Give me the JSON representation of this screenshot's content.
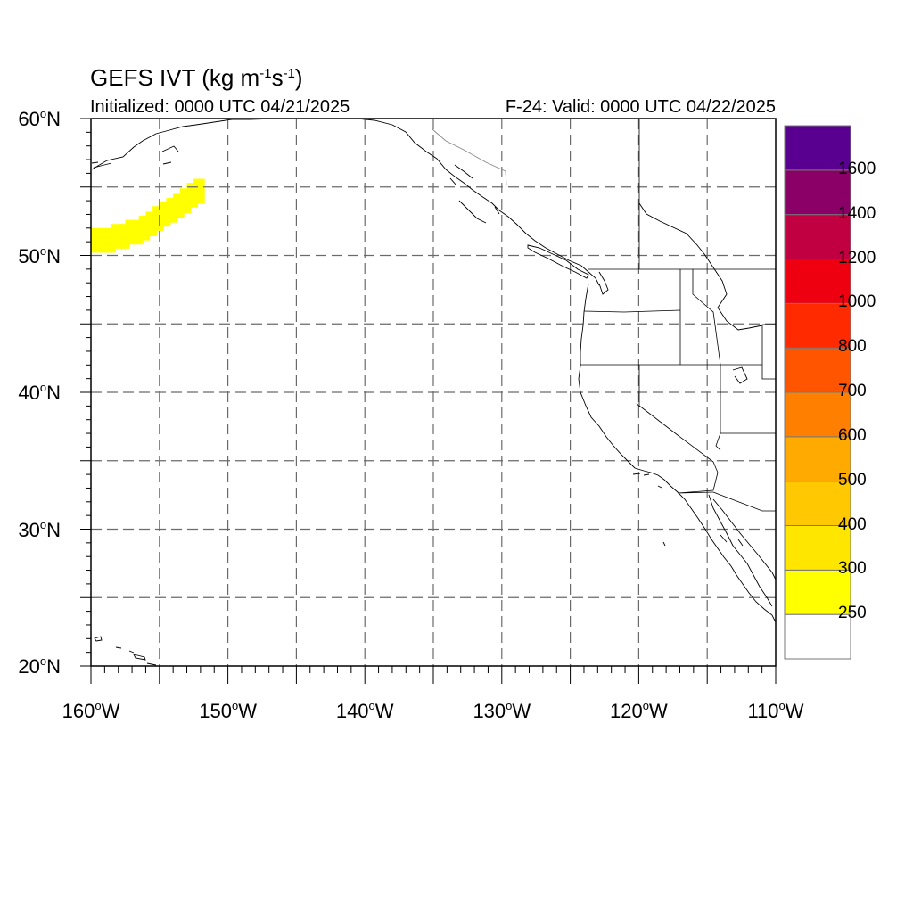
{
  "title": {
    "main": "GEFS IVT (kg m",
    "sup1": "-1",
    "mid": "s",
    "sup2": "-1",
    "end": ")"
  },
  "subtitle_left": "Initialized: 0000 UTC 04/21/2025",
  "subtitle_right": "F-24: Valid: 0000 UTC 04/22/2025",
  "lat_labels": [
    {
      "num": "60",
      "hem": "N"
    },
    {
      "num": "50",
      "hem": "N"
    },
    {
      "num": "40",
      "hem": "N"
    },
    {
      "num": "30",
      "hem": "N"
    },
    {
      "num": "20",
      "hem": "N"
    }
  ],
  "lon_labels": [
    {
      "num": "160",
      "hem": "W"
    },
    {
      "num": "150",
      "hem": "W"
    },
    {
      "num": "140",
      "hem": "W"
    },
    {
      "num": "130",
      "hem": "W"
    },
    {
      "num": "120",
      "hem": "W"
    },
    {
      "num": "110",
      "hem": "W"
    }
  ],
  "colorbar": {
    "labels": [
      "250",
      "300",
      "400",
      "500",
      "600",
      "700",
      "800",
      "1000",
      "1200",
      "1400",
      "1600"
    ],
    "colors": [
      "#ffffff",
      "#ffff00",
      "#ffe600",
      "#ffc800",
      "#ffaa00",
      "#ff8000",
      "#ff5500",
      "#ff2a00",
      "#ee0011",
      "#c00040",
      "#8b0066",
      "#5a0090"
    ]
  },
  "map": {
    "lon_range": [
      -160,
      -110
    ],
    "lat_range": [
      20,
      60
    ],
    "ivt_fill_color": "#ffff00"
  }
}
